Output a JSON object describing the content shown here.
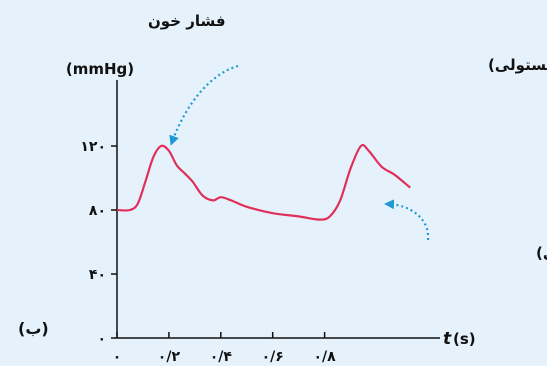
{
  "chart_data": {
    "type": "line",
    "panel_label": "(ب)",
    "ylabel": "فشار خون",
    "yunit": "(mmHg)",
    "xlabel_var": "t",
    "xlabel_unit": "(s)",
    "xlim": [
      0,
      1.4
    ],
    "ylim": [
      0,
      130
    ],
    "x_ticks": [
      {
        "value": 0,
        "label": "۰"
      },
      {
        "value": 0.2,
        "label": "۰/۲"
      },
      {
        "value": 0.4,
        "label": "۰/۴"
      },
      {
        "value": 0.6,
        "label": "۰/۶"
      },
      {
        "value": 0.8,
        "label": "۰/۸"
      }
    ],
    "y_ticks": [
      {
        "value": 0,
        "label": "۰"
      },
      {
        "value": 40,
        "label": "۴۰"
      },
      {
        "value": 80,
        "label": "۸۰"
      },
      {
        "value": 120,
        "label": "۱۲۰"
      }
    ],
    "grid": false,
    "series": [
      {
        "color": "#e0305a",
        "x": [
          0,
          0.05,
          0.08,
          0.11,
          0.14,
          0.17,
          0.2,
          0.23,
          0.26,
          0.29,
          0.33,
          0.37,
          0.4,
          0.44,
          0.5,
          0.6,
          0.7,
          0.78,
          0.82,
          0.86,
          0.9,
          0.94,
          0.97,
          1.02,
          1.07,
          1.13
        ],
        "y": [
          80,
          80,
          84,
          98,
          113,
          120,
          117,
          108,
          103,
          98,
          89,
          86,
          88,
          86,
          82,
          78,
          76,
          74,
          76,
          86,
          106,
          120,
          117,
          107,
          102,
          94
        ]
      }
    ],
    "annotations": [
      {
        "text": "فشار بیشینه (فشار سیستولی)"
      },
      {
        "text": "فشار کمینه (فشار دیاستولی)"
      }
    ]
  }
}
